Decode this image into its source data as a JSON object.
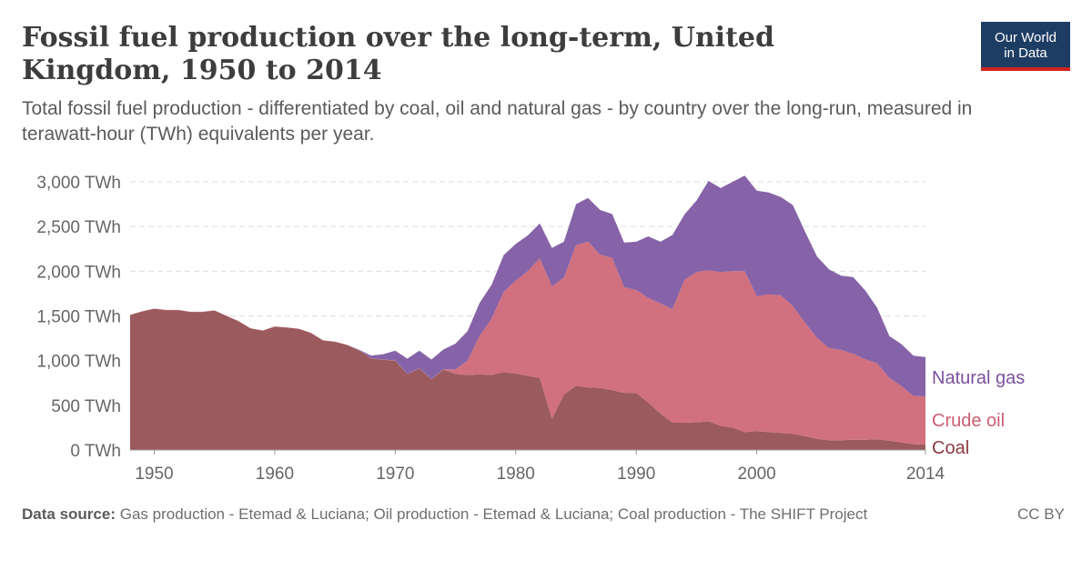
{
  "title": "Fossil fuel production over the long-term, United Kingdom, 1950 to 2014",
  "subtitle": "Total fossil fuel production - differentiated by coal, oil and natural gas - by country over the long-run, measured in terawatt-hour (TWh) equivalents per year.",
  "logo": {
    "line1": "Our World",
    "line2": "in Data"
  },
  "footer": {
    "source_label": "Data source:",
    "source_text": "Gas production - Etemad & Luciana; Oil production - Etemad & Luciana; Coal production - The SHIFT Project",
    "license": "CC BY"
  },
  "colors": {
    "coal": "#9b5a5e",
    "oil": "#d1707e",
    "gas": "#8663a8",
    "coal_label": "#8a3a43",
    "oil_label": "#cc5d6f",
    "gas_label": "#7a519e"
  },
  "chart_data": {
    "type": "area",
    "stacked": true,
    "x": [
      1948,
      1949,
      1950,
      1951,
      1952,
      1953,
      1954,
      1955,
      1956,
      1957,
      1958,
      1959,
      1960,
      1961,
      1962,
      1963,
      1964,
      1965,
      1966,
      1967,
      1968,
      1969,
      1970,
      1971,
      1972,
      1973,
      1974,
      1975,
      1976,
      1977,
      1978,
      1979,
      1980,
      1981,
      1982,
      1983,
      1984,
      1985,
      1986,
      1987,
      1988,
      1989,
      1990,
      1991,
      1992,
      1993,
      1994,
      1995,
      1996,
      1997,
      1998,
      1999,
      2000,
      2001,
      2002,
      2003,
      2004,
      2005,
      2006,
      2007,
      2008,
      2009,
      2010,
      2011,
      2012,
      2013,
      2014
    ],
    "series": [
      {
        "name": "Coal",
        "values": [
          1510,
          1550,
          1580,
          1565,
          1565,
          1545,
          1545,
          1560,
          1500,
          1440,
          1360,
          1335,
          1380,
          1370,
          1355,
          1310,
          1225,
          1210,
          1175,
          1115,
          1025,
          1010,
          1000,
          850,
          910,
          790,
          900,
          850,
          840,
          845,
          840,
          870,
          855,
          830,
          805,
          350,
          620,
          720,
          700,
          695,
          670,
          640,
          640,
          530,
          410,
          305,
          305,
          310,
          320,
          270,
          250,
          200,
          210,
          200,
          190,
          180,
          155,
          125,
          110,
          110,
          115,
          115,
          120,
          105,
          85,
          65,
          60
        ]
      },
      {
        "name": "Crude oil",
        "values": [
          2,
          2,
          2,
          2,
          2,
          2,
          2,
          2,
          2,
          2,
          2,
          2,
          2,
          2,
          2,
          2,
          2,
          2,
          2,
          2,
          2,
          2,
          2,
          2,
          2,
          2,
          5,
          50,
          160,
          430,
          630,
          900,
          1040,
          1170,
          1340,
          1480,
          1310,
          1570,
          1630,
          1490,
          1480,
          1180,
          1150,
          1170,
          1230,
          1270,
          1600,
          1680,
          1690,
          1720,
          1750,
          1800,
          1510,
          1540,
          1540,
          1430,
          1270,
          1130,
          1030,
          1010,
          960,
          900,
          850,
          700,
          630,
          540,
          540
        ]
      },
      {
        "name": "Natural gas",
        "values": [
          0,
          0,
          0,
          0,
          0,
          0,
          0,
          0,
          0,
          0,
          0,
          0,
          0,
          0,
          0,
          0,
          0,
          0,
          0,
          5,
          30,
          60,
          110,
          170,
          200,
          220,
          220,
          290,
          330,
          370,
          380,
          410,
          410,
          400,
          390,
          430,
          400,
          460,
          490,
          500,
          490,
          500,
          540,
          690,
          690,
          830,
          730,
          800,
          1000,
          940,
          1000,
          1070,
          1180,
          1140,
          1100,
          1130,
          1020,
          910,
          880,
          830,
          860,
          770,
          620,
          470,
          470,
          450,
          440
        ]
      }
    ],
    "y_ticks": [
      "0 TWh",
      "500 TWh",
      "1,000 TWh",
      "1,500 TWh",
      "2,000 TWh",
      "2,500 TWh",
      "3,000 TWh"
    ],
    "y_tick_values": [
      0,
      500,
      1000,
      1500,
      2000,
      2500,
      3000
    ],
    "x_ticks": [
      "1950",
      "1960",
      "1970",
      "1980",
      "1990",
      "2000",
      "2014"
    ],
    "x_tick_values": [
      1950,
      1960,
      1970,
      1980,
      1990,
      2000,
      2014
    ],
    "series_labels": [
      "Natural gas",
      "Crude oil",
      "Coal"
    ],
    "xlim": [
      1948,
      2014
    ],
    "ylim": [
      0,
      3000
    ],
    "grid": true,
    "legend": "right, inline labels"
  }
}
